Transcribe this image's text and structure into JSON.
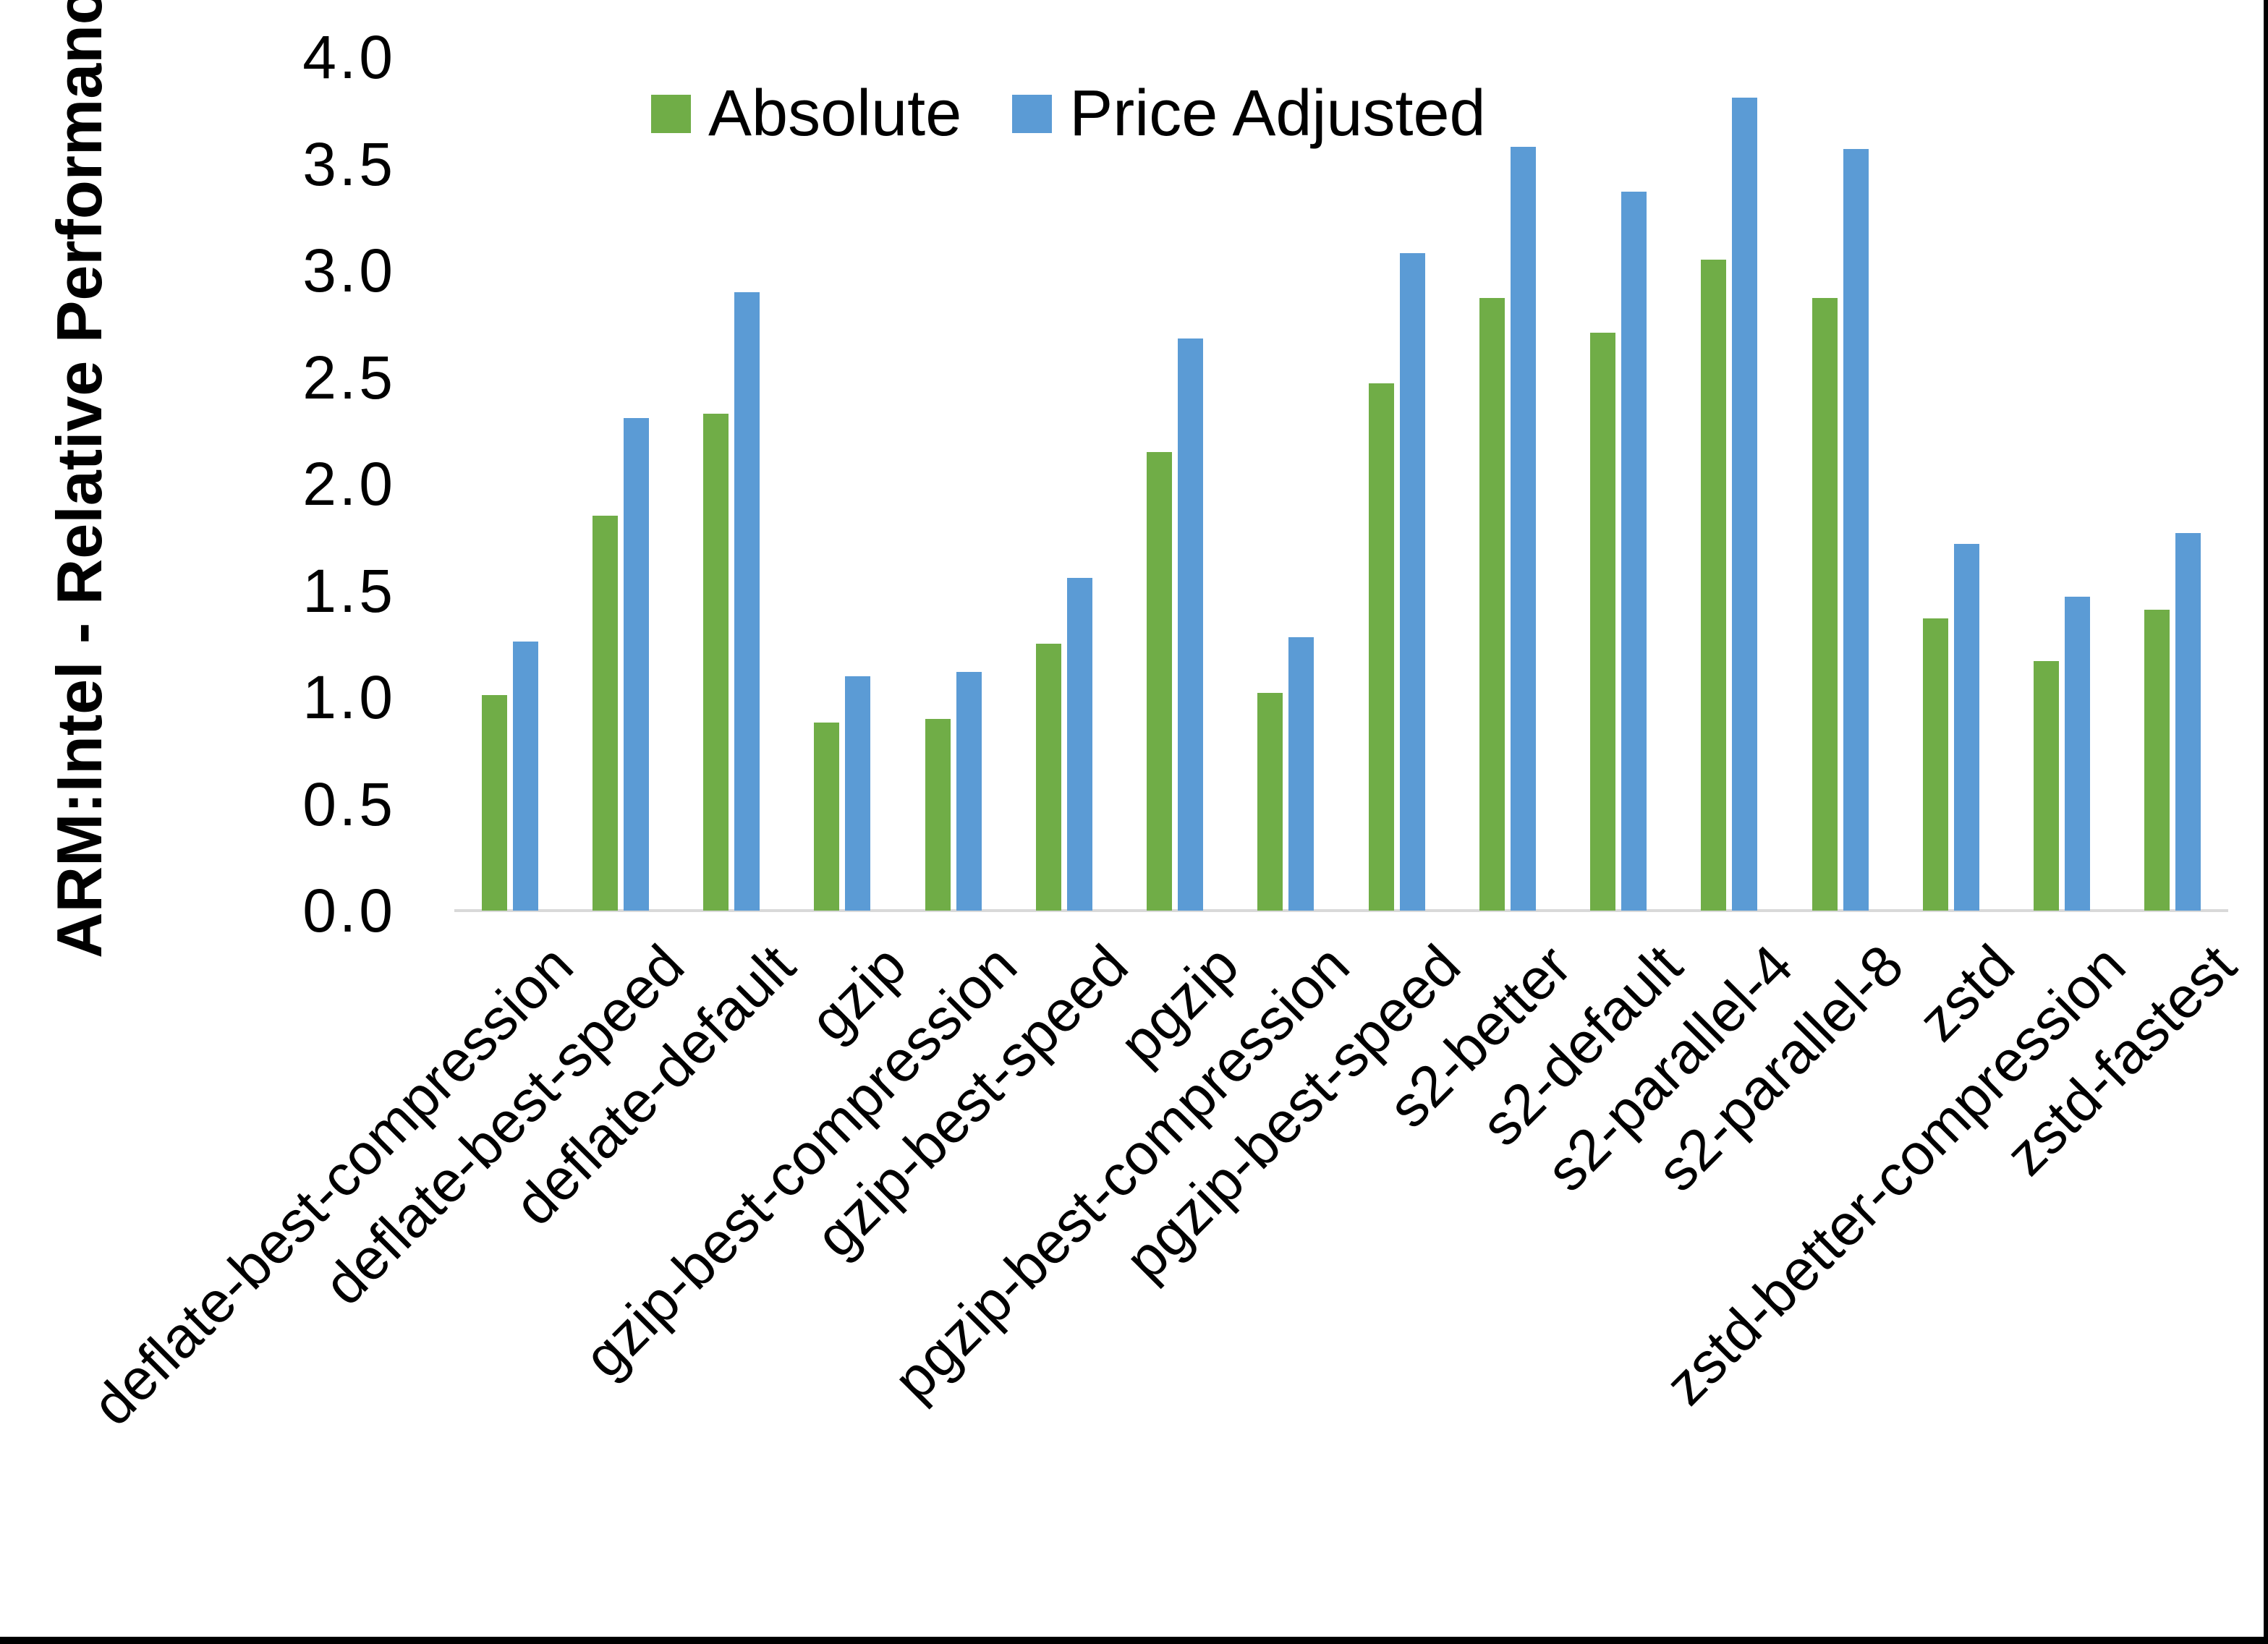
{
  "chart_data": {
    "type": "bar",
    "title": "",
    "xlabel": "",
    "ylabel": "ARM:Intel - Relative Performance",
    "ylim": [
      0.0,
      4.0
    ],
    "ytick_step": 0.5,
    "y_tick_labels": [
      "0.0",
      "0.5",
      "1.0",
      "1.5",
      "2.0",
      "2.5",
      "3.0",
      "3.5",
      "4.0"
    ],
    "grid": false,
    "legend_position": "top-center",
    "categories": [
      "deflate-best-compression",
      "deflate-best-speed",
      "deflate-default",
      "gzip",
      "gzip-best-compression",
      "gzip-best-speed",
      "pgzip",
      "pgzip-best-compression",
      "pgzip-best-speed",
      "s2-better",
      "s2-default",
      "s2-parallel-4",
      "s2-parallel-8",
      "zstd",
      "zstd-better-compression",
      "zstd-fastest"
    ],
    "series": [
      {
        "name": "Absolute",
        "color": "#70AD47",
        "values": [
          1.01,
          1.85,
          2.33,
          0.88,
          0.9,
          1.25,
          2.15,
          1.02,
          2.47,
          2.87,
          2.71,
          3.05,
          2.87,
          1.37,
          1.17,
          1.41
        ]
      },
      {
        "name": "Price Adjusted",
        "color": "#5B9BD5",
        "values": [
          1.26,
          2.31,
          2.9,
          1.1,
          1.12,
          1.56,
          2.68,
          1.28,
          3.08,
          3.58,
          3.37,
          3.81,
          3.57,
          1.72,
          1.47,
          1.77
        ]
      }
    ]
  },
  "style_colors": {
    "axis_line": "#D9D9D9",
    "text": "#000000",
    "background": "#FFFFFF",
    "window_border": "#000000"
  }
}
